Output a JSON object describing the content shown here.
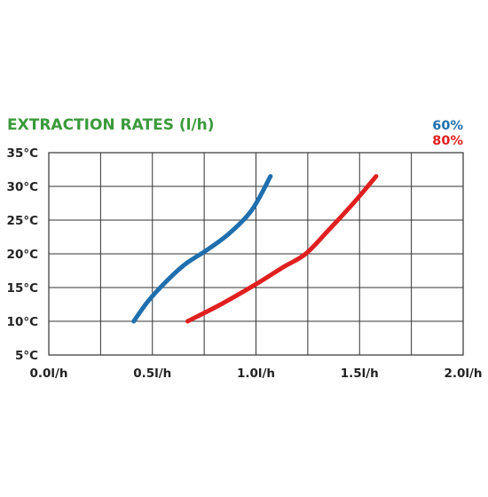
{
  "chart_data": {
    "type": "line",
    "title": "EXTRACTION RATES (l/h)",
    "xlabel": "",
    "ylabel": "",
    "xlim": [
      0.0,
      2.0
    ],
    "ylim": [
      5,
      35
    ],
    "x_ticks": [
      0.0,
      0.5,
      1.0,
      1.5,
      2.0
    ],
    "x_tick_labels": [
      "0.0l/h",
      "0.5l/h",
      "1.0l/h",
      "1.5l/h",
      "2.0l/h"
    ],
    "y_ticks": [
      5,
      10,
      15,
      20,
      25,
      30,
      35
    ],
    "y_tick_labels": [
      "5°C",
      "10°C",
      "15°C",
      "20°C",
      "25°C",
      "30°C",
      "35°C"
    ],
    "x_grid_step": 0.25,
    "grid": true,
    "legend_position": "top-right",
    "series": [
      {
        "name": "60%",
        "color": "#1f6fae",
        "x": [
          0.41,
          0.48,
          0.57,
          0.66,
          0.76,
          0.87,
          0.98,
          1.07
        ],
        "y": [
          10,
          13,
          16,
          18.5,
          20.5,
          23,
          26.5,
          31.5
        ]
      },
      {
        "name": "80%",
        "color": "#e02020",
        "x": [
          0.67,
          0.83,
          1.0,
          1.13,
          1.24,
          1.35,
          1.47,
          1.58
        ],
        "y": [
          10,
          12.5,
          15.5,
          18,
          20,
          23.5,
          27.5,
          31.5
        ]
      }
    ],
    "title_color": "#3b9a3b"
  }
}
